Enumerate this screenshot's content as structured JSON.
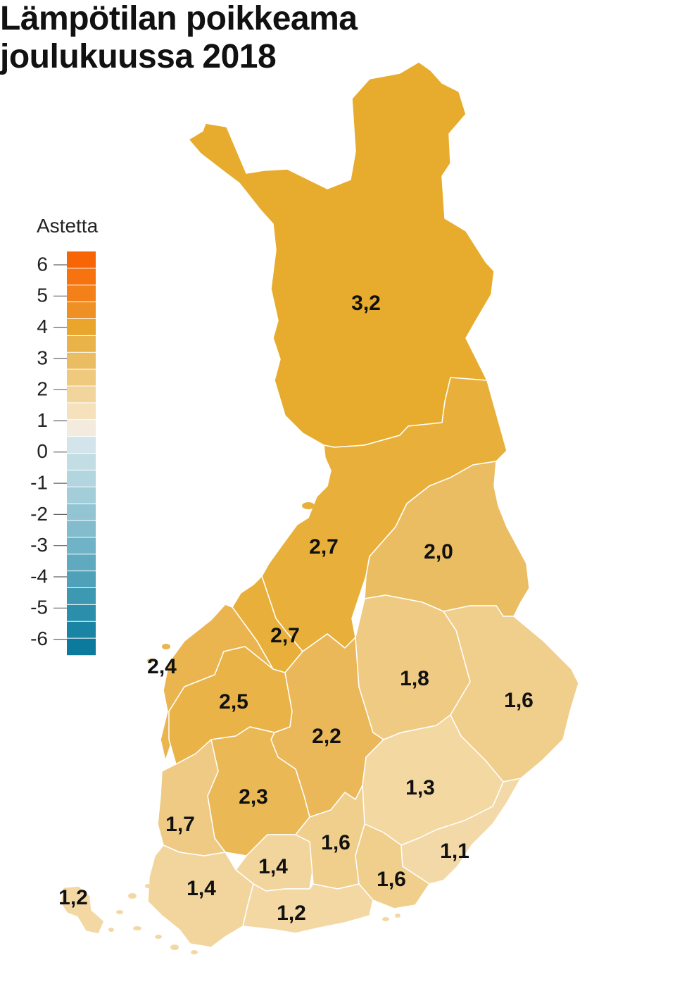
{
  "title": {
    "line1": "Lämpötilan poikkeama",
    "line2": "joulukuussa 2018"
  },
  "legend": {
    "title": "Astetta",
    "ticks": [
      "6",
      "5",
      "4",
      "3",
      "2",
      "1",
      "0",
      "-1",
      "-2",
      "-3",
      "-4",
      "-5",
      "-6"
    ],
    "colors": [
      "#f76506",
      "#f6730f",
      "#f4801a",
      "#ee9024",
      "#e9a52c",
      "#eab34a",
      "#ebbd62",
      "#efc97e",
      "#f2d59d",
      "#f5e2bd",
      "#f3ebdd",
      "#d3e5ea",
      "#c3dde5",
      "#b3d5df",
      "#a3cdd9",
      "#92c4d3",
      "#82bccd",
      "#71b3c6",
      "#60aac0",
      "#4ea1b9",
      "#3d98b2",
      "#2b8eab",
      "#1a84a4",
      "#0c7a9c"
    ]
  },
  "regions": [
    {
      "id": "lappi",
      "value": "3,2",
      "color": "#e7ac2d"
    },
    {
      "id": "pohjois-pohjanmaa",
      "value": "2,7",
      "color": "#e8b03b"
    },
    {
      "id": "kainuu",
      "value": "2,0",
      "color": "#ebbd62"
    },
    {
      "id": "keski-pohjanmaa",
      "value": "2,7",
      "color": "#e8b03b"
    },
    {
      "id": "pohjanmaa",
      "value": "2,4",
      "color": "#eab54f"
    },
    {
      "id": "etela-pohjanmaa",
      "value": "2,5",
      "color": "#e9b347"
    },
    {
      "id": "keski-suomi",
      "value": "2,2",
      "color": "#eab859"
    },
    {
      "id": "pohjois-savo",
      "value": "1,8",
      "color": "#efca82"
    },
    {
      "id": "pohjois-karjala",
      "value": "1,6",
      "color": "#f0ce8b"
    },
    {
      "id": "etela-savo",
      "value": "1,3",
      "color": "#f3d8a2"
    },
    {
      "id": "pirkanmaa",
      "value": "2,3",
      "color": "#eab854"
    },
    {
      "id": "satakunta",
      "value": "1,7",
      "color": "#efca85"
    },
    {
      "id": "kanta-hame",
      "value": "1,4",
      "color": "#f2d59c"
    },
    {
      "id": "paijat-hame",
      "value": "1,6",
      "color": "#f0ce8b"
    },
    {
      "id": "kymenlaakso",
      "value": "1,6",
      "color": "#f0ce8b"
    },
    {
      "id": "etela-karjala",
      "value": "1,1",
      "color": "#f3d9a7"
    },
    {
      "id": "varsinais-suomi",
      "value": "1,4",
      "color": "#f2d59c"
    },
    {
      "id": "uusimaa",
      "value": "1,2",
      "color": "#f3d8a4"
    },
    {
      "id": "ahvenanmaa",
      "value": "1,2",
      "color": "#f3d8a4"
    }
  ]
}
